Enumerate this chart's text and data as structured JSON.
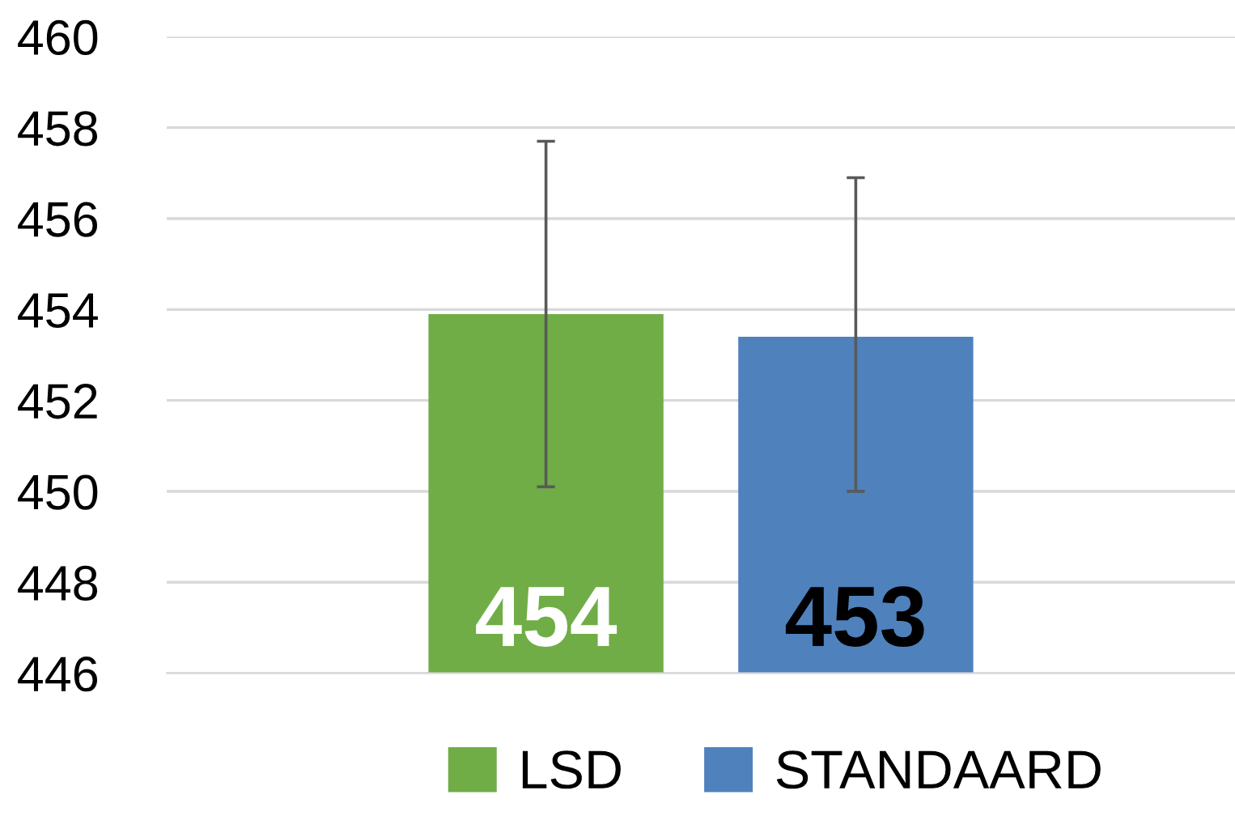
{
  "chart_data": {
    "type": "bar",
    "categories": [
      null
    ],
    "series": [
      {
        "name": "LSD",
        "color": "#70ad47",
        "values": [
          453.9
        ],
        "errors": [
          [
            450.1,
            457.7
          ]
        ],
        "value_labels": [
          "454"
        ]
      },
      {
        "name": "STANDAARD",
        "color": "#4f81bd",
        "values": [
          453.4
        ],
        "errors": [
          [
            450.0,
            456.9
          ]
        ],
        "value_labels": [
          "453"
        ]
      }
    ],
    "ylim": [
      446,
      460
    ],
    "yticks": [
      446,
      448,
      450,
      452,
      454,
      456,
      458,
      460
    ],
    "grid": "y",
    "legend": "bottom"
  }
}
